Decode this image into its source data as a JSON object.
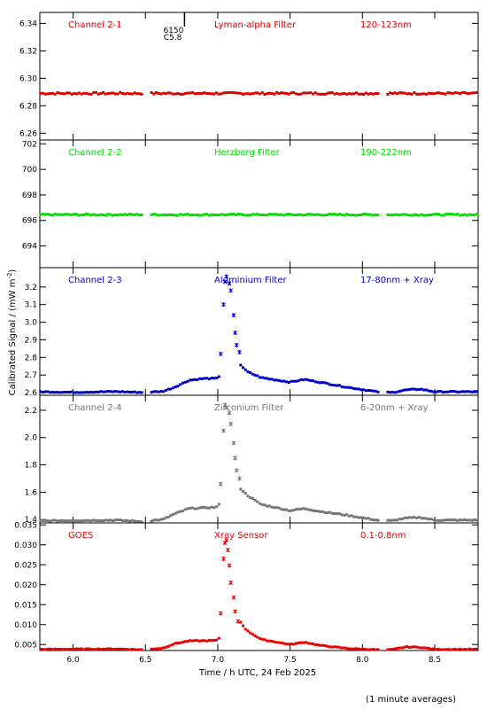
{
  "figure": {
    "xlabel": "Time / h UTC, 24 Feb 2025",
    "ylabel": "Calibrated Signal / (mW m",
    "ylabel_sup": "-2",
    "ylabel_close": ")",
    "footnote": "(1 minute averages)",
    "annotation": {
      "line1": "6150",
      "line2": "C5.8",
      "x": 6.77
    }
  },
  "chart_data": [
    {
      "type": "scatter",
      "panel": "Channel 2-1",
      "labels": [
        "Channel 2-1",
        "Lyman-alpha Filter",
        "120-123nm"
      ],
      "color": "#dd0000",
      "xlim": [
        5.77,
        8.8
      ],
      "ylim": [
        6.255,
        6.348
      ],
      "yticks": [
        6.26,
        6.28,
        6.3,
        6.32,
        6.34
      ],
      "tick_decimals": 2,
      "gaps": [
        [
          6.49,
          6.53
        ],
        [
          8.12,
          8.17
        ]
      ],
      "baseline": [
        [
          5.77,
          6.289
        ],
        [
          8.8,
          6.289
        ]
      ],
      "jitter": 0.0007,
      "spread": [],
      "peak": []
    },
    {
      "type": "scatter",
      "panel": "Channel 2-2",
      "labels": [
        "Channel 2-2",
        "Herzberg Filter",
        "190-222nm"
      ],
      "color": "#00dd00",
      "xlim": [
        5.77,
        8.8
      ],
      "ylim": [
        692.3,
        702.3
      ],
      "yticks": [
        694,
        696,
        698,
        700,
        702
      ],
      "tick_decimals": 0,
      "gaps": [
        [
          6.49,
          6.53
        ],
        [
          8.12,
          8.17
        ]
      ],
      "baseline": [
        [
          5.77,
          696.45
        ],
        [
          8.8,
          696.45
        ]
      ],
      "jitter": 0.06,
      "spread": [],
      "peak": []
    },
    {
      "type": "scatter",
      "panel": "Channel 2-3",
      "labels": [
        "Channel 2-3",
        "Aluminium Filter",
        "17-80nm + Xray"
      ],
      "color": "#0000cc",
      "xlim": [
        5.77,
        8.8
      ],
      "ylim": [
        2.585,
        3.31
      ],
      "yticks": [
        2.6,
        2.7,
        2.8,
        2.9,
        3.0,
        3.1,
        3.2
      ],
      "tick_decimals": 1,
      "gaps": [
        [
          6.49,
          6.53
        ],
        [
          8.12,
          8.17
        ]
      ],
      "baseline": [
        [
          5.77,
          2.605
        ],
        [
          6.0,
          2.602
        ],
        [
          6.3,
          2.606
        ],
        [
          6.48,
          2.601
        ],
        [
          6.62,
          2.607
        ],
        [
          6.7,
          2.63
        ],
        [
          6.8,
          2.67
        ],
        [
          6.9,
          2.68
        ],
        [
          6.99,
          2.68
        ],
        [
          7.02,
          2.7
        ],
        [
          7.1,
          2.81
        ],
        [
          7.2,
          2.72
        ],
        [
          7.3,
          2.685
        ],
        [
          7.5,
          2.66
        ],
        [
          7.6,
          2.675
        ],
        [
          7.7,
          2.66
        ],
        [
          7.9,
          2.63
        ],
        [
          8.1,
          2.605
        ],
        [
          8.2,
          2.6
        ],
        [
          8.3,
          2.615
        ],
        [
          8.4,
          2.62
        ],
        [
          8.5,
          2.605
        ],
        [
          8.8,
          2.605
        ]
      ],
      "jitter": 0.003,
      "spread": [
        [
          7.02,
          2.81
        ],
        [
          7.04,
          3.12
        ],
        [
          7.05,
          3.2
        ],
        [
          7.06,
          3.25
        ],
        [
          7.08,
          3.23
        ],
        [
          7.09,
          3.19
        ],
        [
          7.11,
          3.04
        ],
        [
          7.12,
          2.95
        ],
        [
          7.14,
          2.85
        ]
      ],
      "peak": [
        [
          7.02,
          2.82
        ],
        [
          7.04,
          3.1
        ],
        [
          7.05,
          3.23
        ],
        [
          7.06,
          3.26
        ],
        [
          7.08,
          3.22
        ],
        [
          7.09,
          3.18
        ],
        [
          7.11,
          3.04
        ],
        [
          7.12,
          2.94
        ],
        [
          7.13,
          2.87
        ],
        [
          7.15,
          2.83
        ]
      ]
    },
    {
      "type": "scatter",
      "panel": "Channel 2-4",
      "labels": [
        "Channel 2-4",
        "Zirconium Filter",
        "6-20nm + Xray"
      ],
      "color": "#777777",
      "xlim": [
        5.77,
        8.8
      ],
      "ylim": [
        1.375,
        2.31
      ],
      "yticks": [
        1.4,
        1.6,
        1.8,
        2.0,
        2.2
      ],
      "tick_decimals": 1,
      "gaps": [
        [
          6.49,
          6.53
        ],
        [
          8.12,
          8.17
        ]
      ],
      "baseline": [
        [
          5.77,
          1.39
        ],
        [
          6.3,
          1.395
        ],
        [
          6.48,
          1.385
        ],
        [
          6.62,
          1.4
        ],
        [
          6.7,
          1.44
        ],
        [
          6.8,
          1.48
        ],
        [
          6.99,
          1.49
        ],
        [
          7.02,
          1.52
        ],
        [
          7.1,
          1.69
        ],
        [
          7.2,
          1.58
        ],
        [
          7.3,
          1.51
        ],
        [
          7.5,
          1.465
        ],
        [
          7.6,
          1.48
        ],
        [
          7.7,
          1.46
        ],
        [
          7.9,
          1.43
        ],
        [
          8.1,
          1.395
        ],
        [
          8.2,
          1.39
        ],
        [
          8.3,
          1.41
        ],
        [
          8.4,
          1.415
        ],
        [
          8.5,
          1.395
        ],
        [
          8.8,
          1.395
        ]
      ],
      "jitter": 0.004,
      "spread": [
        [
          7.02,
          1.65
        ],
        [
          7.04,
          2.0
        ],
        [
          7.05,
          2.12
        ],
        [
          7.06,
          2.18
        ],
        [
          7.08,
          2.14
        ],
        [
          7.09,
          2.05
        ],
        [
          7.11,
          1.95
        ],
        [
          7.12,
          1.84
        ],
        [
          7.14,
          1.73
        ]
      ],
      "peak": [
        [
          7.02,
          1.66
        ],
        [
          7.04,
          2.05
        ],
        [
          7.05,
          2.24
        ],
        [
          7.06,
          2.22
        ],
        [
          7.08,
          2.18
        ],
        [
          7.09,
          2.1
        ],
        [
          7.11,
          1.96
        ],
        [
          7.12,
          1.85
        ],
        [
          7.13,
          1.76
        ],
        [
          7.15,
          1.7
        ]
      ]
    },
    {
      "type": "scatter",
      "panel": "GOES",
      "labels": [
        "GOES",
        "Xray Sensor",
        "0.1-0.8nm"
      ],
      "color": "#ee0000",
      "xlim": [
        5.77,
        8.8
      ],
      "ylim": [
        0.0035,
        0.0355
      ],
      "yticks": [
        0.005,
        0.01,
        0.015,
        0.02,
        0.025,
        0.03,
        0.035
      ],
      "tick_decimals": 3,
      "gaps": [
        [
          6.49,
          6.53
        ],
        [
          8.12,
          8.17
        ]
      ],
      "baseline": [
        [
          5.77,
          0.0038
        ],
        [
          6.3,
          0.0039
        ],
        [
          6.48,
          0.0037
        ],
        [
          6.62,
          0.0041
        ],
        [
          6.7,
          0.0052
        ],
        [
          6.8,
          0.0059
        ],
        [
          6.99,
          0.006
        ],
        [
          7.02,
          0.007
        ],
        [
          7.1,
          0.0135
        ],
        [
          7.2,
          0.0085
        ],
        [
          7.3,
          0.0063
        ],
        [
          7.5,
          0.005
        ],
        [
          7.6,
          0.0056
        ],
        [
          7.7,
          0.0048
        ],
        [
          7.9,
          0.004
        ],
        [
          8.1,
          0.0037
        ],
        [
          8.2,
          0.0037
        ],
        [
          8.3,
          0.0044
        ],
        [
          8.4,
          0.0043
        ],
        [
          8.5,
          0.0038
        ],
        [
          8.8,
          0.0038
        ]
      ],
      "jitter": 0.0001,
      "spread": [
        [
          7.02,
          0.0125
        ],
        [
          7.04,
          0.026
        ],
        [
          7.05,
          0.0295
        ],
        [
          7.06,
          0.031
        ],
        [
          7.07,
          0.029
        ],
        [
          7.08,
          0.025
        ],
        [
          7.09,
          0.0205
        ],
        [
          7.11,
          0.0165
        ],
        [
          7.12,
          0.013
        ]
      ],
      "peak": [
        [
          7.02,
          0.0128
        ],
        [
          7.04,
          0.0265
        ],
        [
          7.05,
          0.0305
        ],
        [
          7.06,
          0.0312
        ],
        [
          7.07,
          0.0287
        ],
        [
          7.08,
          0.0248
        ],
        [
          7.09,
          0.0205
        ],
        [
          7.11,
          0.0168
        ],
        [
          7.12,
          0.0133
        ],
        [
          7.14,
          0.0108
        ]
      ]
    }
  ],
  "xaxis": {
    "ticks": [
      6.0,
      6.5,
      7.0,
      7.5,
      8.0,
      8.5
    ],
    "tick_labels": [
      "6.0",
      "6.5",
      "7.0",
      "7.5",
      "8.0",
      "8.5"
    ]
  }
}
